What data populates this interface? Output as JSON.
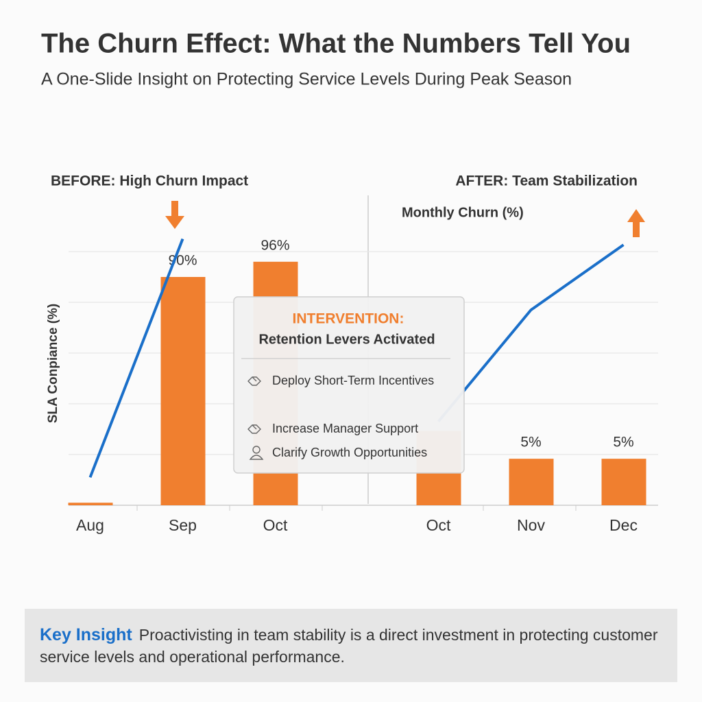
{
  "title": "The Churn Effect: What the Numbers Tell You",
  "subtitle": "A One-Slide Insight on Protecting Service Levels During Peak Season",
  "chart_data": [
    {
      "type": "bar",
      "title": "BEFORE: High Churn Impact",
      "y_label": "SLA Conpiance (%)",
      "categories": [
        "Aug",
        "Sep",
        "Oct"
      ],
      "values": [
        1,
        90,
        96
      ],
      "value_labels": [
        null,
        "90%",
        "96%"
      ],
      "color": "#f07f2f",
      "line": {
        "color": "#1a6fc9",
        "values": [
          11,
          105,
          null
        ]
      },
      "ylim": [
        0,
        110
      ],
      "ygrid": [
        20,
        40,
        60,
        80,
        100
      ]
    },
    {
      "type": "bar",
      "title": "AFTER: Team Stabilization",
      "y_label": "Monthly Churn (%)",
      "categories": [
        "Oct",
        "Nov",
        "Dec"
      ],
      "values": [
        8,
        5,
        5
      ],
      "value_labels": [
        null,
        "5%",
        "5%"
      ],
      "color": "#f07f2f",
      "line": {
        "color": "#1a6fc9",
        "values": [
          9,
          21,
          28
        ]
      },
      "ylim": [
        0,
        30
      ]
    }
  ],
  "intervention": {
    "title": "INTERVENTION:",
    "subtitle": "Retention Levers Activated",
    "items": [
      "Deploy Short-Term Incentives",
      "Increase Manager Support",
      "Clarify Growth Opportunities"
    ]
  },
  "insight": {
    "label": "Key Insight",
    "text": "Proactivisting in team stability is a direct investment in protecting customer service levels and operational performance."
  }
}
